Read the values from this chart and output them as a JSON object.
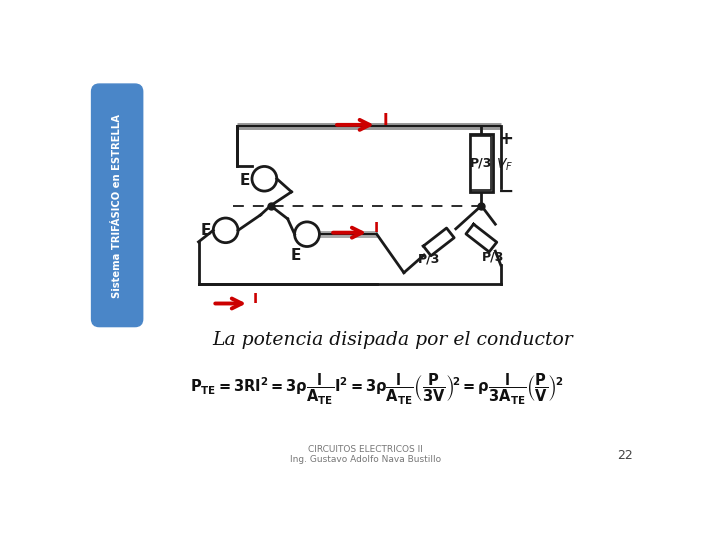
{
  "bg_color": "#ffffff",
  "sidebar_color": "#4a86c8",
  "sidebar_text": "Sistema TRIFÁSICO en ESTRELLA",
  "sidebar_text_color": "#ffffff",
  "title_text": "La potencia disipada por el conductor",
  "footer_line1": "CIRCUITOS ELECTRICOS II",
  "footer_line2": "Ing. Gustavo Adolfo Nava Bustillo",
  "page_number": "22",
  "arrow_color": "#cc0000",
  "circuit_color": "#1a1a1a",
  "gray_wire": "#888888"
}
